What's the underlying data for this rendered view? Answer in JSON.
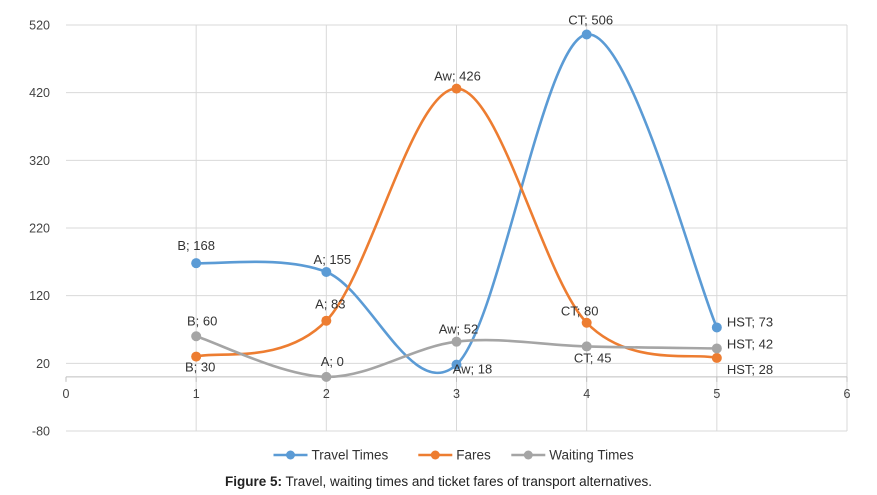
{
  "chart_data": {
    "type": "line",
    "smooth": true,
    "title": "",
    "xlabel": "",
    "ylabel": "",
    "xlim": [
      0,
      6
    ],
    "ylim": [
      -80,
      520
    ],
    "x_ticks": [
      0,
      1,
      2,
      3,
      4,
      5,
      6
    ],
    "y_ticks": [
      -80,
      20,
      120,
      220,
      320,
      420,
      520
    ],
    "grid": true,
    "legend_position": "bottom",
    "x": [
      1,
      2,
      3,
      4,
      5
    ],
    "series": [
      {
        "name": "Travel Times",
        "color": "#5b9bd5",
        "values": [
          168,
          155,
          18,
          506,
          73
        ],
        "labels": [
          "B; 168",
          "A; 155",
          "Aw; 18",
          "CT; 506",
          "HST; 73"
        ]
      },
      {
        "name": "Fares",
        "color": "#ed7d31",
        "values": [
          30,
          83,
          426,
          80,
          28
        ],
        "labels": [
          "B; 30",
          "A; 83",
          "Aw; 426",
          "CT; 80",
          "HST; 28"
        ]
      },
      {
        "name": "Waiting Times",
        "color": "#a5a5a5",
        "values": [
          60,
          0,
          52,
          45,
          42
        ],
        "labels": [
          "B; 60",
          "A; 0",
          "Aw; 52",
          "CT; 45",
          "HST; 42"
        ]
      }
    ]
  },
  "caption": {
    "label": "Figure 5:",
    "text": " Travel, waiting times and ticket fares of transport alternatives."
  }
}
